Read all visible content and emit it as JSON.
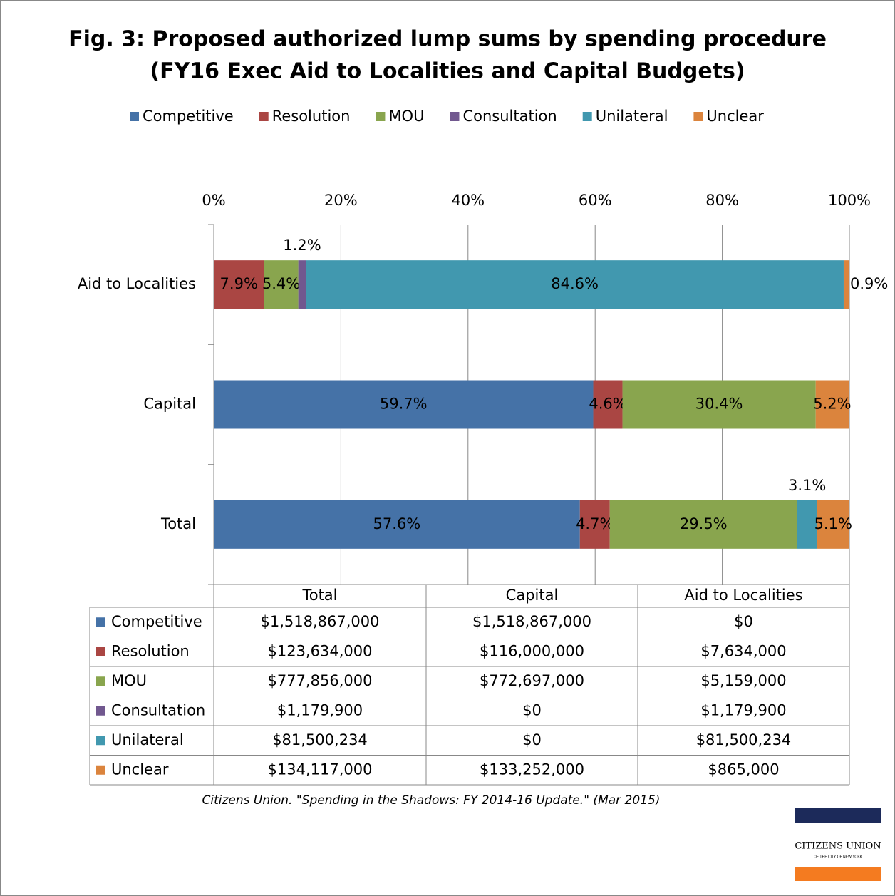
{
  "chart_data": {
    "type": "stacked_bar_horizontal",
    "title": [
      "Fig. 3: Proposed authorized lump sums by spending procedure",
      "(FY16 Exec Aid to Localities and Capital Budgets)"
    ],
    "categories": [
      "Aid to Localities",
      "Capital",
      "Total"
    ],
    "series": [
      {
        "name": "Competitive",
        "color": "#4572a7",
        "values": [
          0,
          59.7,
          57.6
        ],
        "value_labels": [
          null,
          "59.7%",
          "57.6%"
        ]
      },
      {
        "name": "Resolution",
        "color": "#aa4643",
        "values": [
          7.9,
          4.6,
          4.7
        ],
        "value_labels": [
          "7.9%",
          "4.6%",
          "4.7%"
        ]
      },
      {
        "name": "MOU",
        "color": "#89a54e",
        "values": [
          5.4,
          30.4,
          29.5
        ],
        "value_labels": [
          "5.4%",
          "30.4%",
          "29.5%"
        ]
      },
      {
        "name": "Consultation",
        "color": "#71588f",
        "values": [
          1.2,
          0,
          0
        ],
        "value_labels": [
          "1.2%",
          null,
          null
        ]
      },
      {
        "name": "Unilateral",
        "color": "#4198af",
        "values": [
          84.6,
          0,
          3.1
        ],
        "value_labels": [
          "84.6%",
          null,
          "3.1%"
        ]
      },
      {
        "name": "Unclear",
        "color": "#db843d",
        "values": [
          0.9,
          5.2,
          5.1
        ],
        "value_labels": [
          "0.9%",
          "5.2%",
          "5.1%"
        ]
      }
    ],
    "xlim": [
      0,
      100
    ],
    "xticks": [
      {
        "value": 0,
        "label": "0%"
      },
      {
        "value": 20,
        "label": "20%"
      },
      {
        "value": 40,
        "label": "40%"
      },
      {
        "value": 60,
        "label": "60%"
      },
      {
        "value": 80,
        "label": "80%"
      },
      {
        "value": 100,
        "label": "100%"
      }
    ],
    "grid": true,
    "legend": "top",
    "table": {
      "columns": [
        "Total",
        "Capital",
        "Aid to Localities"
      ],
      "rows": [
        [
          "$1,518,867,000",
          "$1,518,867,000",
          "$0"
        ],
        [
          "$123,634,000",
          "$116,000,000",
          "$7,634,000"
        ],
        [
          "$777,856,000",
          "$772,697,000",
          "$5,159,000"
        ],
        [
          "$1,179,900",
          "$0",
          "$1,179,900"
        ],
        [
          "$81,500,234",
          "$0",
          "$81,500,234"
        ],
        [
          "$134,117,000",
          "$133,252,000",
          "$865,000"
        ]
      ]
    },
    "source": "Citizens Union. \"Spending in the Shadows: FY 2014-16 Update.\" (Mar 2015)",
    "logo": [
      "CITIZENS UNION",
      "OF THE CITY OF NEW YORK"
    ]
  }
}
